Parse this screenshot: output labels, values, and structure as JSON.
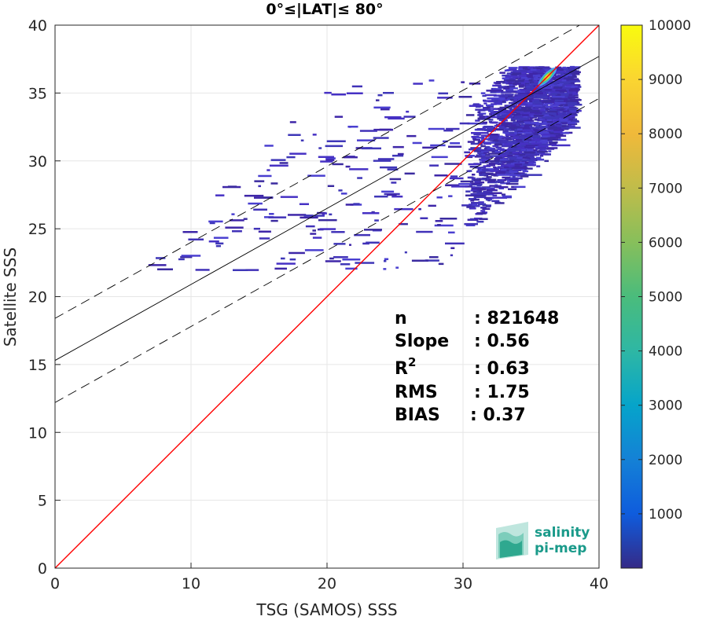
{
  "chart_data": {
    "type": "heatmap",
    "title": "0°≤|LAT|≤ 80°",
    "xlabel": "TSG (SAMOS) SSS",
    "ylabel": "Satellite SSS",
    "xlim": [
      0,
      40
    ],
    "ylim": [
      0,
      40
    ],
    "x_ticks": [
      "0",
      "10",
      "20",
      "30",
      "40"
    ],
    "y_ticks": [
      "0",
      "5",
      "10",
      "15",
      "20",
      "25",
      "30",
      "35",
      "40"
    ],
    "grid": true,
    "colorbar": {
      "colormap": "parula",
      "range": [
        0,
        10000
      ],
      "ticks": [
        "1000",
        "2000",
        "3000",
        "4000",
        "5000",
        "6000",
        "7000",
        "8000",
        "9000",
        "10000"
      ]
    },
    "lines": [
      {
        "role": "one-to-one",
        "color": "#ff0000",
        "intercept": 0,
        "slope": 1
      },
      {
        "role": "regression",
        "color": "#000000",
        "intercept": 15.3,
        "slope": 0.56
      },
      {
        "role": "upper-bound",
        "color": "#000000",
        "style": "dashed",
        "intercept": 18.4,
        "slope": 0.56
      },
      {
        "role": "lower-bound",
        "color": "#000000",
        "style": "dashed",
        "intercept": 12.2,
        "slope": 0.56
      }
    ],
    "density_core": {
      "x": 36.2,
      "y": 36.2
    }
  },
  "stats": [
    {
      "label": "n",
      "value": ": 821648"
    },
    {
      "label": "Slope",
      "value": ": 0.56"
    },
    {
      "label": "R",
      "sup": "2",
      "value": ": 0.63"
    },
    {
      "label": "RMS",
      "value": ": 1.75"
    },
    {
      "label": "BIAS",
      "value": ": 0.37"
    }
  ],
  "logo": {
    "line1": "salinity",
    "line2": "pi-mep"
  }
}
